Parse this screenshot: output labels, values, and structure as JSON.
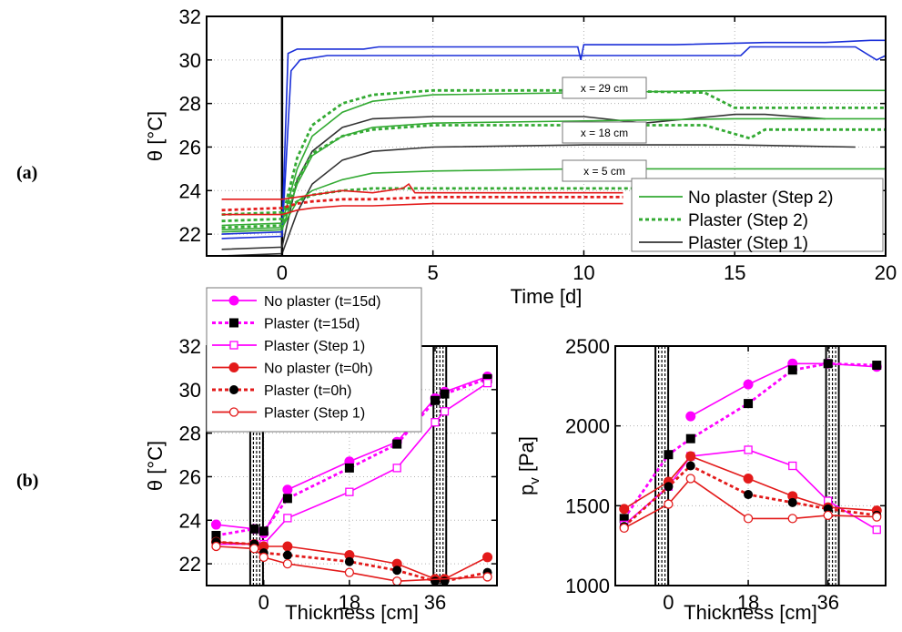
{
  "figure": {
    "panel_a_label": "(a)",
    "panel_b_label": "(b)"
  },
  "chart_data": [
    {
      "id": "a",
      "type": "line",
      "xlabel": "Time [d]",
      "ylabel": "θ [°C]",
      "xlim": [
        -2.5,
        20
      ],
      "ylim": [
        21,
        32
      ],
      "xticks": [
        0,
        5,
        10,
        15,
        20
      ],
      "yticks": [
        22,
        24,
        26,
        28,
        30,
        32
      ],
      "legend_position": "bottom-right",
      "legend": [
        {
          "label": "No plaster (Step 2)",
          "color": "#33aa33",
          "style": "solid"
        },
        {
          "label": "Plaster (Step 2)",
          "color": "#33aa33",
          "style": "dotted"
        },
        {
          "label": "Plaster (Step 1)",
          "color": "#333333",
          "style": "solid"
        }
      ],
      "annotations": [
        "x = 29 cm",
        "x = 18 cm",
        "x = 5 cm"
      ],
      "series": [
        {
          "name": "Blue upper",
          "color": "#1a2fd8",
          "style": "solid",
          "x": [
            -2,
            0,
            0.2,
            0.5,
            1,
            2.7,
            3.2,
            9.8,
            9.9,
            10,
            12,
            13,
            16,
            18,
            19.5,
            20
          ],
          "y": [
            22.0,
            22.1,
            30.3,
            30.5,
            30.5,
            30.5,
            30.6,
            30.6,
            30.0,
            30.7,
            30.7,
            30.7,
            30.8,
            30.8,
            30.9,
            30.9
          ]
        },
        {
          "name": "Blue lower",
          "color": "#1a2fd8",
          "style": "solid",
          "x": [
            -2,
            0,
            0.3,
            0.6,
            1.5,
            3,
            6,
            9.8,
            10,
            14,
            15.2,
            15.5,
            16,
            19,
            19.7,
            20
          ],
          "y": [
            21.8,
            21.9,
            29.5,
            30.0,
            30.2,
            30.2,
            30.2,
            30.2,
            30.2,
            30.2,
            30.2,
            30.6,
            30.6,
            30.6,
            30.0,
            30.2
          ]
        },
        {
          "name": "No plaster (Step 2) x=29",
          "color": "#33aa33",
          "style": "solid",
          "x": [
            -2,
            0,
            0.5,
            1,
            2,
            3,
            5,
            10,
            15,
            20
          ],
          "y": [
            22.4,
            22.5,
            25.0,
            26.5,
            27.6,
            28.1,
            28.4,
            28.5,
            28.6,
            28.6
          ]
        },
        {
          "name": "Plaster (Step 2) x=29",
          "color": "#33aa33",
          "style": "dotted",
          "x": [
            -2,
            0,
            0.5,
            1,
            2,
            3,
            5,
            10,
            14,
            15,
            16,
            20
          ],
          "y": [
            22.6,
            22.7,
            25.5,
            27.0,
            28.0,
            28.4,
            28.6,
            28.6,
            28.5,
            27.8,
            27.8,
            27.8
          ]
        },
        {
          "name": "Plaster (Step 1) x=29",
          "color": "#333333",
          "style": "solid",
          "x": [
            -2,
            0,
            0.5,
            1,
            2,
            3,
            5,
            10,
            12,
            15,
            16,
            18
          ],
          "y": [
            21.3,
            21.4,
            24.5,
            25.8,
            26.9,
            27.3,
            27.4,
            27.4,
            27.1,
            27.5,
            27.5,
            27.3
          ]
        },
        {
          "name": "No plaster (Step 2) x=18",
          "color": "#33aa33",
          "style": "solid",
          "x": [
            -2,
            0,
            0.5,
            1,
            2,
            3,
            5,
            10,
            15,
            20
          ],
          "y": [
            22.1,
            22.2,
            24.3,
            25.6,
            26.5,
            26.9,
            27.1,
            27.2,
            27.3,
            27.3
          ]
        },
        {
          "name": "Plaster (Step 2) x=18",
          "color": "#33aa33",
          "style": "dotted",
          "x": [
            -2,
            0,
            0.5,
            1,
            2,
            3,
            5,
            10,
            14,
            15.5,
            16,
            20
          ],
          "y": [
            22.3,
            22.4,
            24.5,
            25.7,
            26.5,
            26.8,
            27.0,
            27.0,
            27.0,
            26.4,
            26.8,
            26.8
          ]
        },
        {
          "name": "Plaster (Step 1) x=18",
          "color": "#333333",
          "style": "solid",
          "x": [
            -2,
            0,
            0.5,
            1,
            2,
            3,
            5,
            10,
            15,
            19
          ],
          "y": [
            21.0,
            21.1,
            23.0,
            24.3,
            25.4,
            25.8,
            26.0,
            26.1,
            26.1,
            26.0
          ]
        },
        {
          "name": "No plaster (Step 2) x=5",
          "color": "#33aa33",
          "style": "solid",
          "x": [
            -2,
            0,
            0.5,
            1,
            2,
            3,
            5,
            10,
            15,
            20
          ],
          "y": [
            22.2,
            22.3,
            23.5,
            24.0,
            24.5,
            24.8,
            24.9,
            25.0,
            25.0,
            25.0
          ]
        },
        {
          "name": "Plaster (Step 2) x=5",
          "color": "#33aa33",
          "style": "dotted",
          "x": [
            -2,
            0,
            0.5,
            1,
            2,
            3,
            5,
            10,
            14
          ],
          "y": [
            22.9,
            23.0,
            23.5,
            23.8,
            24.0,
            24.1,
            24.1,
            24.1,
            24.1
          ]
        },
        {
          "name": "Red upper",
          "color": "#e31a1a",
          "style": "solid",
          "x": [
            -2,
            0,
            0.5,
            1,
            2,
            3,
            4,
            4.2,
            4.4,
            5,
            10,
            11.3
          ],
          "y": [
            23.6,
            23.6,
            23.7,
            23.8,
            24.0,
            23.9,
            24.1,
            24.3,
            23.9,
            23.9,
            23.9,
            23.9
          ]
        },
        {
          "name": "Red middle",
          "color": "#e31a1a",
          "style": "dotted",
          "x": [
            -2,
            0,
            0.5,
            1,
            2,
            3,
            5,
            10,
            11.3
          ],
          "y": [
            23.1,
            23.2,
            23.4,
            23.5,
            23.6,
            23.6,
            23.7,
            23.7,
            23.7
          ]
        },
        {
          "name": "Red lower",
          "color": "#e31a1a",
          "style": "solid",
          "x": [
            -2,
            0,
            0.5,
            1,
            2,
            3,
            5,
            10,
            11.3
          ],
          "y": [
            22.9,
            22.9,
            23.1,
            23.2,
            23.3,
            23.3,
            23.4,
            23.4,
            23.4
          ]
        }
      ]
    },
    {
      "id": "b-left",
      "type": "line",
      "xlabel": "Thickness [cm]",
      "ylabel": "θ [°C]",
      "xlim": [
        -12,
        49
      ],
      "ylim": [
        21,
        32
      ],
      "xticks": [
        0,
        18,
        36
      ],
      "yticks": [
        22,
        24,
        26,
        28,
        30,
        32
      ],
      "legend_position": "top-left",
      "legend": [
        {
          "label": "No plaster (t=15d)",
          "color": "#ff00ff",
          "style": "solid",
          "marker": "filled-circle"
        },
        {
          "label": "Plaster (t=15d)",
          "color": "#ff00ff",
          "style": "dotted",
          "marker": "black-square"
        },
        {
          "label": "Plaster (Step 1)",
          "color": "#ff00ff",
          "style": "solid",
          "marker": "open-square"
        },
        {
          "label": "No plaster (t=0h)",
          "color": "#e31a1a",
          "style": "solid",
          "marker": "filled-circle"
        },
        {
          "label": "Plaster (t=0h)",
          "color": "#e31a1a",
          "style": "dotted",
          "marker": "black-circle"
        },
        {
          "label": "Plaster (Step 1)",
          "color": "#e31a1a",
          "style": "solid",
          "marker": "open-circle"
        }
      ],
      "series": [
        {
          "name": "No plaster (t=15d)",
          "color": "#ff00ff",
          "style": "solid",
          "marker": "filled-circle",
          "x": [
            -10,
            -2,
            0,
            5,
            18,
            28,
            36,
            38,
            47
          ],
          "y": [
            23.8,
            23.6,
            23.4,
            25.4,
            26.7,
            27.6,
            29.6,
            29.9,
            30.6
          ]
        },
        {
          "name": "Plaster (t=15d)",
          "color": "#ff00ff",
          "style": "dotted",
          "marker": "black-square",
          "x": [
            -10,
            -2,
            0,
            5,
            18,
            28,
            36,
            38,
            47
          ],
          "y": [
            23.3,
            23.6,
            23.5,
            25.0,
            26.4,
            27.5,
            29.5,
            29.8,
            30.5
          ]
        },
        {
          "name": "Plaster (Step 1)",
          "color": "#ff00ff",
          "style": "solid",
          "marker": "open-square",
          "x": [
            -10,
            -2,
            0,
            5,
            18,
            28,
            36,
            38,
            47
          ],
          "y": [
            22.9,
            22.9,
            22.9,
            24.1,
            25.3,
            26.4,
            28.5,
            29.0,
            30.3
          ]
        },
        {
          "name": "No plaster (t=0h)",
          "color": "#e31a1a",
          "style": "solid",
          "marker": "filled-circle",
          "x": [
            -10,
            -2,
            0,
            5,
            18,
            28,
            36,
            38,
            47
          ],
          "y": [
            23.0,
            22.9,
            22.8,
            22.8,
            22.4,
            22.0,
            21.3,
            21.3,
            22.3
          ]
        },
        {
          "name": "Plaster (t=0h)",
          "color": "#e31a1a",
          "style": "dotted",
          "marker": "black-circle",
          "x": [
            -10,
            -2,
            0,
            5,
            18,
            28,
            36,
            38,
            47
          ],
          "y": [
            23.0,
            22.9,
            22.5,
            22.4,
            22.1,
            21.7,
            21.2,
            21.2,
            21.6
          ]
        },
        {
          "name": "Plaster (Step 1)",
          "color": "#e31a1a",
          "style": "solid",
          "marker": "open-circle",
          "x": [
            -10,
            -2,
            0,
            5,
            18,
            28,
            47
          ],
          "y": [
            22.8,
            22.7,
            22.3,
            22.0,
            21.6,
            21.2,
            21.4
          ]
        }
      ]
    },
    {
      "id": "b-right",
      "type": "line",
      "xlabel": "Thickness [cm]",
      "ylabel": "p_v [Pa]",
      "ylabel_main": "p",
      "ylabel_sub": "v",
      "ylabel_unit": " [Pa]",
      "xlim": [
        -12,
        49
      ],
      "ylim": [
        1000,
        2500
      ],
      "xticks": [
        0,
        18,
        36
      ],
      "yticks": [
        1000,
        1500,
        2000,
        2500
      ],
      "series": [
        {
          "name": "No plaster (t=15d)",
          "color": "#ff00ff",
          "style": "solid",
          "marker": "filled-circle",
          "x": [
            5,
            18,
            28,
            36,
            47
          ],
          "y": [
            2060,
            2260,
            2390,
            2390,
            2370
          ]
        },
        {
          "name": "Plaster (t=15d)",
          "color": "#ff00ff",
          "style": "dotted",
          "marker": "black-square",
          "x": [
            -10,
            0,
            5,
            18,
            28,
            36,
            47
          ],
          "y": [
            1420,
            1820,
            1920,
            2140,
            2350,
            2390,
            2380
          ]
        },
        {
          "name": "Plaster (Step 1)",
          "color": "#ff00ff",
          "style": "solid",
          "marker": "open-square",
          "x": [
            -10,
            0,
            5,
            18,
            28,
            36,
            47
          ],
          "y": [
            1380,
            1620,
            1810,
            1850,
            1750,
            1530,
            1350
          ]
        },
        {
          "name": "No plaster (t=0h)",
          "color": "#e31a1a",
          "style": "solid",
          "marker": "filled-circle",
          "x": [
            -10,
            0,
            5,
            18,
            28,
            36,
            47
          ],
          "y": [
            1480,
            1650,
            1810,
            1670,
            1560,
            1490,
            1470
          ]
        },
        {
          "name": "Plaster (t=0h)",
          "color": "#e31a1a",
          "style": "dotted",
          "marker": "black-circle",
          "x": [
            -10,
            0,
            5,
            18,
            28,
            36,
            47
          ],
          "y": [
            1370,
            1620,
            1750,
            1570,
            1520,
            1480,
            1440
          ]
        },
        {
          "name": "Plaster (Step 1)",
          "color": "#e31a1a",
          "style": "solid",
          "marker": "open-circle",
          "x": [
            -10,
            0,
            5,
            18,
            28,
            36,
            47
          ],
          "y": [
            1360,
            1510,
            1670,
            1420,
            1420,
            1440,
            1430
          ]
        }
      ]
    }
  ]
}
